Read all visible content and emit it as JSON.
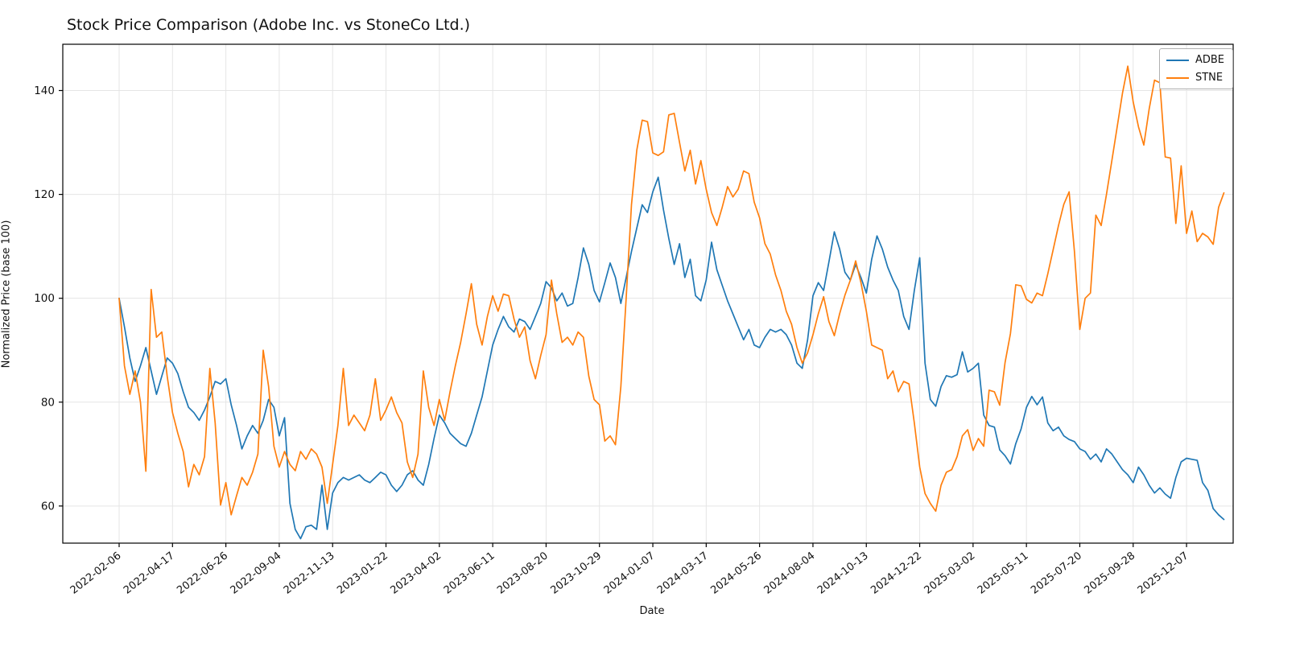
{
  "title": "Stock Price Comparison (Adobe Inc. vs StoneCo Ltd.)",
  "chart_data": {
    "type": "line",
    "title": "Stock Price Comparison (Adobe Inc. vs StoneCo Ltd.)",
    "xlabel": "Date",
    "ylabel": "Normalized Price (base 100)",
    "grid": true,
    "legend_position": "upper right",
    "x_frequency": "weekly",
    "x_start_date": "2022-02-06",
    "x_tick_weeks": [
      0,
      10,
      20,
      30,
      40,
      50,
      60,
      70,
      80,
      90,
      100,
      110,
      120,
      130,
      140,
      150,
      160,
      170,
      180,
      190,
      200
    ],
    "x_tick_labels": [
      "2022-02-06",
      "2022-04-17",
      "2022-06-26",
      "2022-09-04",
      "2022-11-13",
      "2023-01-22",
      "2023-04-02",
      "2023-06-11",
      "2023-08-20",
      "2023-10-29",
      "2024-01-07",
      "2024-03-17",
      "2024-05-26",
      "2024-08-04",
      "2024-10-13",
      "2024-12-22",
      "2025-03-02",
      "2025-05-11",
      "2025-07-20",
      "2025-09-28",
      "2025-12-07"
    ],
    "yticks": [
      60,
      80,
      100,
      120,
      140
    ],
    "ylim": [
      52.8,
      149.0
    ],
    "xlim_weeks": [
      -10.5,
      208.8
    ],
    "series": [
      {
        "name": "ADBE",
        "color": "#1f77b4",
        "values": [
          100,
          94.5,
          88.5,
          84.0,
          87.0,
          90.5,
          86.0,
          81.5,
          85.0,
          88.5,
          87.5,
          85.5,
          82.0,
          79.0,
          78.0,
          76.5,
          78.5,
          81.0,
          84.0,
          83.5,
          84.5,
          79.5,
          75.5,
          71.0,
          73.5,
          75.5,
          74.0,
          76.5,
          80.5,
          79.0,
          73.5,
          77.0,
          60.5,
          55.5,
          53.7,
          56.0,
          56.3,
          55.5,
          64.0,
          55.5,
          62.5,
          64.5,
          65.5,
          65.0,
          65.5,
          66.0,
          65.0,
          64.5,
          65.5,
          66.5,
          66.0,
          64.0,
          62.8,
          64.0,
          66.0,
          66.8,
          65.0,
          64.0,
          68.0,
          73.0,
          77.5,
          76.0,
          74.0,
          73.0,
          72.0,
          71.5,
          74.0,
          77.5,
          81.0,
          86.0,
          91.0,
          94.0,
          96.5,
          94.5,
          93.5,
          96.0,
          95.5,
          94.0,
          96.5,
          99.0,
          103.2,
          102.0,
          99.5,
          101.0,
          98.5,
          99.0,
          104.0,
          109.7,
          106.5,
          101.5,
          99.3,
          103.0,
          106.8,
          104.0,
          99.0,
          104.0,
          109.0,
          113.5,
          118.0,
          116.5,
          120.5,
          123.3,
          117.0,
          111.5,
          106.5,
          110.5,
          104.0,
          107.5,
          100.5,
          99.5,
          103.5,
          110.8,
          105.5,
          102.5,
          99.5,
          97.0,
          94.5,
          92.0,
          94.0,
          91.0,
          90.5,
          92.5,
          94.0,
          93.5,
          94.0,
          93.0,
          91.0,
          87.5,
          86.5,
          92.0,
          100.5,
          103.0,
          101.5,
          107.0,
          112.8,
          109.5,
          105.0,
          103.5,
          106.5,
          104.0,
          101.0,
          107.5,
          112.0,
          109.5,
          106.0,
          103.5,
          101.5,
          96.5,
          94.0,
          101.5,
          107.8,
          87.5,
          80.5,
          79.2,
          83.0,
          85.1,
          84.8,
          85.3,
          89.7,
          85.8,
          86.5,
          87.5,
          77.5,
          75.5,
          75.2,
          70.8,
          69.7,
          68.1,
          72.0,
          74.8,
          79.0,
          81.1,
          79.5,
          81.0,
          76.0,
          74.5,
          75.2,
          73.5,
          72.8,
          72.4,
          71.0,
          70.5,
          69.0,
          70.0,
          68.5,
          71.0,
          70.0,
          68.5,
          67.0,
          66.0,
          64.5,
          67.5,
          66.0,
          64.0,
          62.5,
          63.5,
          62.3,
          61.5,
          65.5,
          68.5,
          69.2,
          69.0,
          68.8,
          64.5,
          63.0,
          59.5,
          58.3,
          57.4
        ]
      },
      {
        "name": "STNE",
        "color": "#ff7f0e",
        "values": [
          100,
          87.0,
          81.5,
          86.0,
          80.0,
          66.7,
          101.7,
          92.5,
          93.5,
          85.0,
          78.0,
          74.0,
          70.5,
          63.7,
          68.0,
          66.0,
          69.5,
          86.5,
          76.0,
          60.2,
          64.5,
          58.3,
          62.0,
          65.5,
          64.0,
          66.5,
          70.0,
          90.0,
          83.0,
          71.5,
          67.5,
          70.5,
          68.0,
          66.8,
          70.5,
          69.0,
          71.0,
          70.0,
          67.5,
          60.5,
          68.0,
          75.5,
          86.5,
          75.5,
          77.5,
          76.0,
          74.5,
          77.5,
          84.5,
          76.5,
          78.5,
          81.0,
          78.0,
          76.0,
          68.5,
          65.5,
          70.0,
          86.0,
          79.0,
          75.5,
          80.5,
          76.5,
          82.0,
          87.0,
          91.5,
          97.0,
          102.8,
          95.0,
          91.0,
          96.5,
          100.5,
          97.5,
          100.8,
          100.5,
          96.0,
          92.5,
          94.5,
          88.0,
          84.5,
          89.0,
          93.0,
          103.5,
          97.0,
          91.5,
          92.5,
          91.0,
          93.5,
          92.5,
          85.0,
          80.5,
          79.5,
          72.5,
          73.5,
          71.8,
          83.0,
          100.0,
          118.0,
          128.5,
          134.3,
          134.0,
          128.0,
          127.5,
          128.2,
          135.3,
          135.6,
          130.0,
          124.5,
          128.5,
          122.0,
          126.5,
          121.0,
          116.5,
          114.0,
          117.5,
          121.5,
          119.5,
          121.0,
          124.5,
          124.0,
          118.5,
          115.5,
          110.5,
          108.5,
          104.5,
          101.5,
          97.5,
          95.0,
          90.5,
          87.5,
          89.5,
          93.0,
          97.0,
          100.3,
          95.5,
          92.8,
          97.0,
          100.6,
          103.5,
          107.2,
          103.0,
          97.5,
          91.0,
          90.5,
          90.0,
          84.5,
          86.0,
          82.0,
          84.0,
          83.5,
          76.0,
          67.5,
          62.4,
          60.5,
          59.0,
          64.0,
          66.5,
          67.0,
          69.5,
          73.5,
          74.7,
          70.7,
          73.0,
          71.5,
          82.3,
          82.0,
          79.4,
          87.6,
          93.2,
          102.6,
          102.4,
          99.8,
          99.1,
          101.0,
          100.5,
          104.7,
          109.3,
          114.0,
          118.1,
          120.5,
          109.0,
          94.0,
          100.0,
          101.0,
          116.0,
          114.0,
          120.0,
          126.5,
          133.0,
          139.5,
          144.7,
          137.8,
          133.0,
          129.5,
          136.5,
          142.0,
          141.5,
          127.2,
          127.0,
          114.4,
          125.5,
          112.5,
          116.8,
          110.9,
          112.5,
          111.8,
          110.4,
          117.5,
          120.3
        ]
      }
    ]
  },
  "style": {
    "grid_color": "#e5e5e5",
    "spine_color": "#000000",
    "tick_text_color": "#111111",
    "background": "#ffffff"
  }
}
